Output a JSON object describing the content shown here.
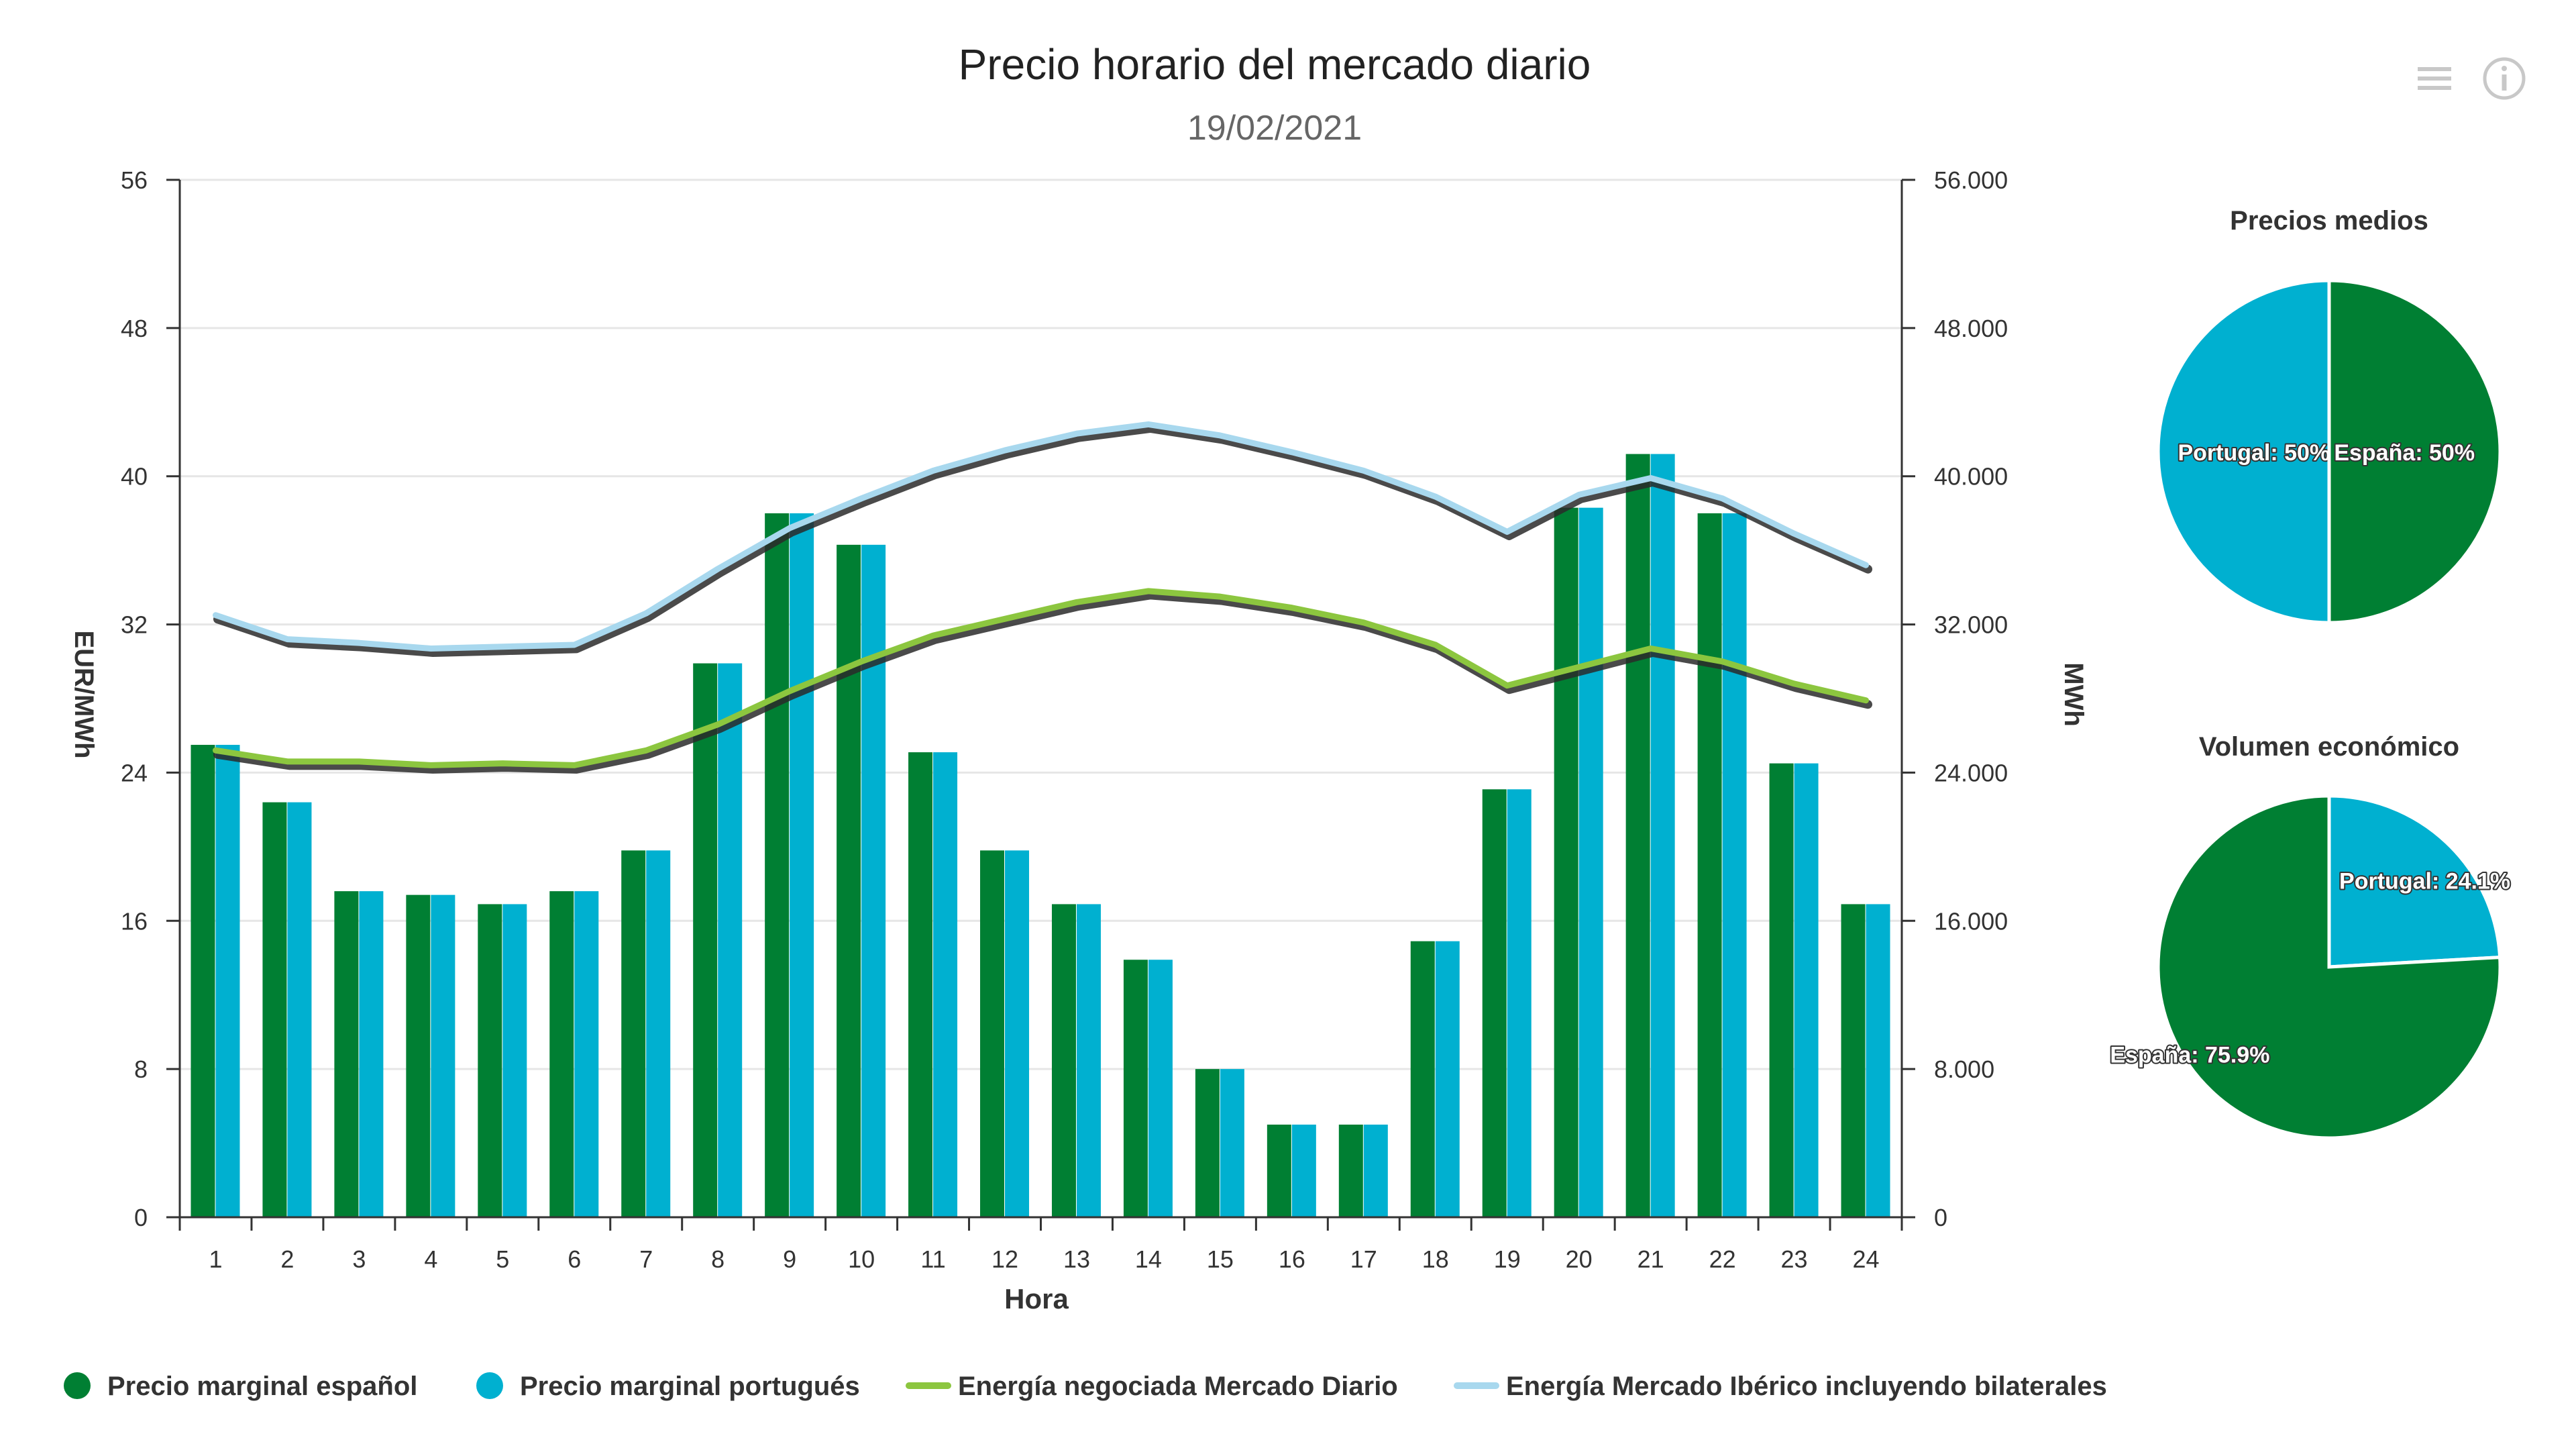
{
  "chart_data": {
    "type": "bar",
    "title": "Precio horario del mercado diario",
    "subtitle": "19/02/2021",
    "xlabel": "Hora",
    "ylabel": "EUR/MWh",
    "y2label": "MWh",
    "categories": [
      "1",
      "2",
      "3",
      "4",
      "5",
      "6",
      "7",
      "8",
      "9",
      "10",
      "11",
      "12",
      "13",
      "14",
      "15",
      "16",
      "17",
      "18",
      "19",
      "20",
      "21",
      "22",
      "23",
      "24"
    ],
    "ylim": [
      0,
      56
    ],
    "y_ticks": [
      "0",
      "8",
      "16",
      "24",
      "32",
      "40",
      "48",
      "56"
    ],
    "y2lim": [
      0,
      56000
    ],
    "y2_ticks": [
      "0",
      "8.000",
      "16.000",
      "24.000",
      "32.000",
      "40.000",
      "48.000",
      "56.000"
    ],
    "grid": true,
    "legend_position": "bottom",
    "series": [
      {
        "name": "Precio marginal español",
        "type": "bar",
        "axis": "left",
        "color": "#007f33",
        "values": [
          25.5,
          22.4,
          17.6,
          17.4,
          16.9,
          17.6,
          19.8,
          29.9,
          38.0,
          36.3,
          25.1,
          19.8,
          16.9,
          13.9,
          8.0,
          5.0,
          5.0,
          14.9,
          23.1,
          38.3,
          41.2,
          38.0,
          24.5,
          16.9
        ]
      },
      {
        "name": "Precio marginal portugués",
        "type": "bar",
        "axis": "left",
        "color": "#00b0d0",
        "values": [
          25.5,
          22.4,
          17.6,
          17.4,
          16.9,
          17.6,
          19.8,
          29.9,
          38.0,
          36.3,
          25.1,
          19.8,
          16.9,
          13.9,
          8.0,
          5.0,
          5.0,
          14.9,
          23.1,
          38.3,
          41.2,
          38.0,
          24.5,
          16.9
        ]
      },
      {
        "name": "Energía negociada Mercado Diario",
        "type": "line",
        "axis": "right",
        "color": "#8cc63f",
        "values": [
          25200,
          24600,
          24600,
          24400,
          24500,
          24400,
          25200,
          26600,
          28400,
          30000,
          31400,
          32300,
          33200,
          33800,
          33500,
          32900,
          32100,
          30900,
          28700,
          29700,
          30700,
          30000,
          28800,
          27900
        ]
      },
      {
        "name": "Energía Mercado Ibérico incluyendo bilaterales",
        "type": "line",
        "axis": "right",
        "color": "#a8d8ee",
        "values": [
          32500,
          31200,
          31000,
          30700,
          30800,
          30900,
          32600,
          35000,
          37200,
          38800,
          40300,
          41400,
          42300,
          42800,
          42200,
          41300,
          40300,
          38900,
          37000,
          39000,
          39900,
          38800,
          36900,
          35200
        ]
      }
    ],
    "pies": [
      {
        "title": "Precios medios",
        "slices": [
          {
            "label": "Portugal: 50%",
            "value": 50,
            "color": "#00b0d0"
          },
          {
            "label": "España: 50%",
            "value": 50,
            "color": "#007f33"
          }
        ]
      },
      {
        "title": "Volumen económico",
        "slices": [
          {
            "label": "Portugal: 24.1%",
            "value": 24.1,
            "color": "#00b0d0"
          },
          {
            "label": "España: 75.9%",
            "value": 75.9,
            "color": "#007f33"
          }
        ]
      }
    ]
  }
}
